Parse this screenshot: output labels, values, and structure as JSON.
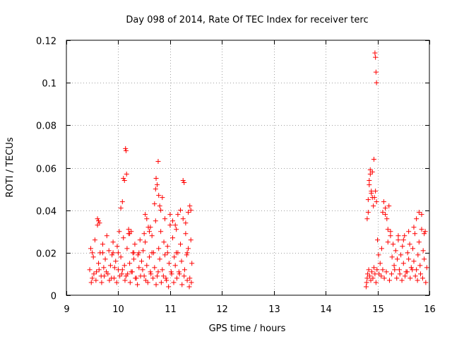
{
  "chart_data": {
    "type": "scatter",
    "title": "Day 098 of 2014, Rate Of TEC Index for receiver terc",
    "xlabel": "GPS time / hours",
    "ylabel": "ROTI / TECUs",
    "xlim": [
      9,
      16
    ],
    "ylim": [
      0,
      0.12
    ],
    "xticks": [
      9,
      10,
      11,
      12,
      13,
      14,
      15,
      16
    ],
    "xtick_labels": [
      "9",
      "10",
      "11",
      "12",
      "13",
      "14",
      "15",
      "16"
    ],
    "yticks": [
      0,
      0.02,
      0.04,
      0.06,
      0.08,
      0.1,
      0.12
    ],
    "ytick_labels": [
      "0",
      "0.02",
      "0.04",
      "0.06",
      "0.08",
      "0.1",
      "0.12"
    ],
    "grid": true,
    "marker": "+",
    "series": [
      {
        "name": "ROTI",
        "color": "#ff0000",
        "x": [
          9.45,
          9.47,
          9.5,
          9.52,
          9.55,
          9.58,
          9.6,
          9.62,
          9.65,
          9.67,
          9.7,
          9.72,
          9.75,
          9.78,
          9.8,
          9.82,
          9.85,
          9.88,
          9.9,
          9.92,
          9.95,
          9.98,
          10.0,
          10.02,
          10.05,
          10.07,
          10.1,
          10.12,
          10.15,
          10.17,
          10.2,
          10.22,
          10.25,
          10.28,
          10.3,
          10.32,
          10.35,
          10.38,
          10.4,
          10.42,
          10.45,
          10.48,
          10.5,
          10.52,
          10.55,
          10.58,
          10.6,
          10.62,
          10.65,
          10.68,
          10.7,
          10.72,
          10.75,
          10.78,
          10.8,
          10.82,
          10.85,
          10.88,
          10.9,
          10.92,
          10.95,
          10.98,
          11.0,
          11.02,
          11.05,
          11.08,
          11.1,
          11.12,
          11.15,
          11.18,
          11.2,
          11.22,
          11.25,
          11.28,
          11.3,
          11.32,
          11.35,
          11.38,
          11.4,
          11.42,
          9.48,
          9.53,
          9.57,
          9.63,
          9.68,
          9.73,
          9.77,
          9.83,
          9.87,
          9.93,
          9.97,
          10.03,
          10.08,
          10.13,
          10.18,
          10.23,
          10.27,
          10.33,
          10.37,
          10.43,
          10.47,
          10.53,
          10.57,
          10.63,
          10.67,
          10.73,
          10.77,
          10.83,
          10.87,
          10.93,
          10.97,
          11.03,
          11.07,
          11.13,
          11.17,
          11.23,
          11.27,
          11.33,
          11.37,
          11.41,
          9.6,
          9.62,
          9.64,
          10.05,
          10.08,
          10.1,
          10.12,
          10.14,
          10.15,
          10.16,
          10.2,
          10.22,
          10.25,
          10.5,
          10.52,
          10.55,
          10.6,
          10.62,
          10.7,
          10.72,
          10.73,
          10.75,
          10.77,
          10.78,
          10.8,
          10.82,
          10.85,
          10.9,
          11.0,
          11.05,
          11.1,
          11.15,
          11.2,
          11.25,
          11.27,
          11.3,
          11.35,
          11.38,
          11.4,
          9.5,
          9.7,
          9.9,
          10.0,
          10.3,
          10.4,
          10.65,
          10.95,
          11.12,
          11.33,
          14.78,
          14.8,
          14.82,
          14.84,
          14.86,
          14.88,
          14.9,
          14.92,
          14.94,
          14.96,
          14.98,
          15.0,
          15.02,
          15.05,
          15.08,
          15.1,
          15.12,
          15.15,
          15.18,
          15.2,
          15.22,
          15.25,
          15.28,
          15.3,
          15.32,
          15.35,
          15.38,
          15.4,
          15.42,
          15.45,
          15.48,
          15.5,
          15.52,
          15.55,
          15.58,
          15.6,
          15.62,
          15.65,
          15.68,
          15.7,
          15.72,
          15.75,
          15.78,
          15.8,
          15.82,
          15.85,
          15.88,
          15.9,
          15.92,
          15.95,
          14.79,
          14.81,
          14.83,
          14.85,
          14.87,
          14.89,
          14.91,
          14.93,
          14.95,
          14.97,
          14.99,
          15.03,
          15.07,
          15.13,
          15.17,
          15.23,
          15.27,
          15.33,
          15.37,
          15.43,
          15.47,
          15.53,
          15.57,
          15.63,
          15.67,
          15.73,
          15.77,
          15.83,
          15.87,
          15.93,
          14.8,
          14.82,
          14.84,
          14.86,
          14.88,
          14.9,
          14.93,
          14.95,
          14.96,
          14.97,
          14.98,
          15.1,
          15.15,
          15.2,
          15.25,
          15.4,
          15.5,
          15.6,
          15.7,
          15.75,
          15.8,
          15.85,
          15.9
        ],
        "y": [
          0.012,
          0.022,
          0.008,
          0.018,
          0.026,
          0.011,
          0.033,
          0.015,
          0.02,
          0.009,
          0.024,
          0.013,
          0.017,
          0.028,
          0.01,
          0.021,
          0.014,
          0.019,
          0.025,
          0.008,
          0.016,
          0.023,
          0.012,
          0.03,
          0.018,
          0.01,
          0.027,
          0.014,
          0.009,
          0.022,
          0.029,
          0.015,
          0.011,
          0.02,
          0.017,
          0.024,
          0.008,
          0.019,
          0.013,
          0.026,
          0.016,
          0.021,
          0.009,
          0.025,
          0.014,
          0.032,
          0.018,
          0.011,
          0.028,
          0.02,
          0.013,
          0.035,
          0.009,
          0.022,
          0.017,
          0.03,
          0.012,
          0.025,
          0.019,
          0.008,
          0.023,
          0.015,
          0.033,
          0.011,
          0.027,
          0.018,
          0.014,
          0.031,
          0.02,
          0.01,
          0.024,
          0.016,
          0.036,
          0.012,
          0.029,
          0.019,
          0.022,
          0.008,
          0.026,
          0.015,
          0.006,
          0.01,
          0.007,
          0.012,
          0.006,
          0.009,
          0.011,
          0.007,
          0.008,
          0.013,
          0.006,
          0.009,
          0.012,
          0.007,
          0.01,
          0.006,
          0.011,
          0.008,
          0.005,
          0.009,
          0.012,
          0.007,
          0.006,
          0.01,
          0.008,
          0.005,
          0.011,
          0.006,
          0.009,
          0.007,
          0.004,
          0.01,
          0.006,
          0.008,
          0.011,
          0.005,
          0.009,
          0.007,
          0.004,
          0.006,
          0.036,
          0.035,
          0.034,
          0.041,
          0.044,
          0.055,
          0.054,
          0.069,
          0.068,
          0.057,
          0.031,
          0.029,
          0.03,
          0.029,
          0.038,
          0.036,
          0.03,
          0.032,
          0.043,
          0.05,
          0.055,
          0.052,
          0.063,
          0.047,
          0.042,
          0.04,
          0.046,
          0.036,
          0.038,
          0.035,
          0.033,
          0.038,
          0.04,
          0.054,
          0.053,
          0.034,
          0.039,
          0.042,
          0.04,
          0.02,
          0.02,
          0.02,
          0.02,
          0.02,
          0.02,
          0.02,
          0.02,
          0.02,
          0.02,
          0.004,
          0.008,
          0.045,
          0.052,
          0.059,
          0.048,
          0.058,
          0.042,
          0.046,
          0.049,
          0.044,
          0.026,
          0.019,
          0.015,
          0.022,
          0.012,
          0.044,
          0.038,
          0.036,
          0.031,
          0.042,
          0.028,
          0.018,
          0.024,
          0.014,
          0.021,
          0.017,
          0.026,
          0.012,
          0.019,
          0.023,
          0.015,
          0.028,
          0.011,
          0.02,
          0.017,
          0.024,
          0.013,
          0.022,
          0.016,
          0.029,
          0.012,
          0.019,
          0.025,
          0.014,
          0.038,
          0.021,
          0.017,
          0.03,
          0.013,
          0.006,
          0.01,
          0.012,
          0.009,
          0.007,
          0.011,
          0.008,
          0.013,
          0.01,
          0.006,
          0.012,
          0.01,
          0.009,
          0.008,
          0.011,
          0.007,
          0.01,
          0.012,
          0.008,
          0.01,
          0.007,
          0.009,
          0.011,
          0.008,
          0.012,
          0.009,
          0.007,
          0.01,
          0.008,
          0.006,
          0.036,
          0.039,
          0.054,
          0.057,
          0.049,
          0.046,
          0.064,
          0.114,
          0.112,
          0.105,
          0.1,
          0.039,
          0.041,
          0.025,
          0.03,
          0.028,
          0.026,
          0.03,
          0.032,
          0.036,
          0.039,
          0.031,
          0.029
        ]
      }
    ]
  }
}
